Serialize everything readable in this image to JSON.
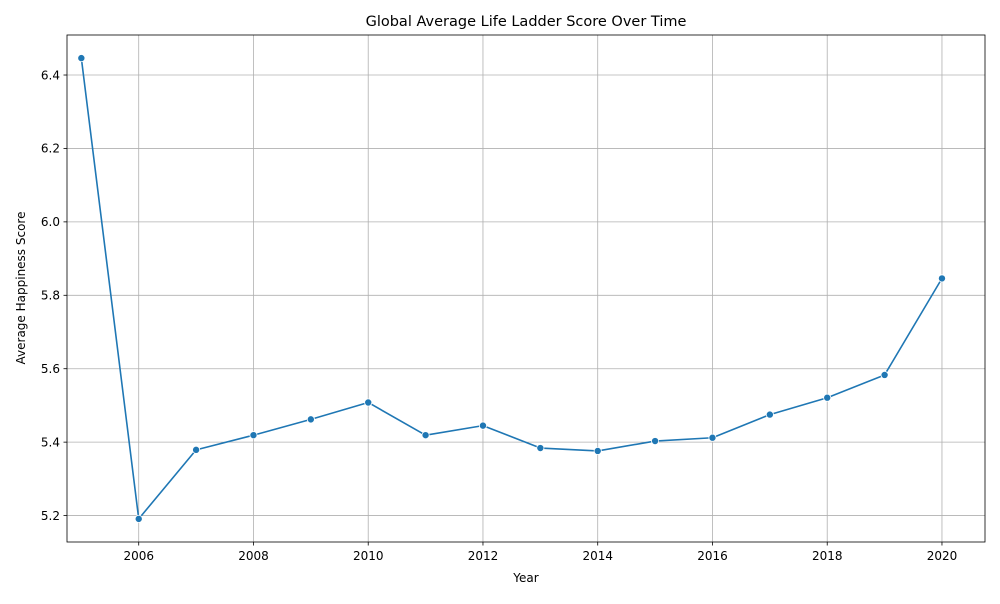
{
  "chart_data": {
    "type": "line",
    "title": "Global Average Life Ladder Score Over Time",
    "xlabel": "Year",
    "ylabel": "Average Happiness Score",
    "x": [
      2005,
      2006,
      2007,
      2008,
      2009,
      2010,
      2011,
      2012,
      2013,
      2014,
      2015,
      2016,
      2017,
      2018,
      2019,
      2020
    ],
    "series": [
      {
        "name": "Life Ladder",
        "values": [
          6.446,
          5.191,
          5.379,
          5.419,
          5.462,
          5.508,
          5.419,
          5.445,
          5.384,
          5.376,
          5.403,
          5.412,
          5.475,
          5.521,
          5.583,
          5.846
        ],
        "color": "#1f77b4"
      }
    ],
    "xlim": [
      2004.75,
      2020.75
    ],
    "ylim": [
      5.128,
      6.509
    ],
    "xticks": [
      2006,
      2008,
      2010,
      2012,
      2014,
      2016,
      2018,
      2020
    ],
    "yticks": [
      5.2,
      5.4,
      5.6,
      5.8,
      6.0,
      6.2,
      6.4
    ],
    "ytick_labels": [
      "5.2",
      "5.4",
      "5.6",
      "5.8",
      "6.0",
      "6.2",
      "6.4"
    ],
    "grid": true,
    "legend": "none"
  }
}
